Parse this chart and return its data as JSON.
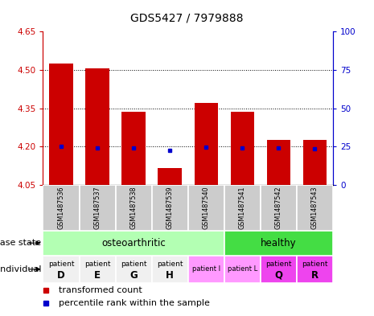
{
  "title": "GDS5427 / 7979888",
  "samples": [
    "GSM1487536",
    "GSM1487537",
    "GSM1487538",
    "GSM1487539",
    "GSM1487540",
    "GSM1487541",
    "GSM1487542",
    "GSM1487543"
  ],
  "bar_values": [
    4.525,
    4.505,
    4.335,
    4.115,
    4.37,
    4.335,
    4.225,
    4.225
  ],
  "percentile_values": [
    4.2,
    4.193,
    4.196,
    4.186,
    4.197,
    4.193,
    4.193,
    4.192
  ],
  "bar_bottom": 4.05,
  "ylim_left": [
    4.05,
    4.65
  ],
  "ylim_right": [
    0,
    100
  ],
  "yticks_left": [
    4.05,
    4.2,
    4.35,
    4.5,
    4.65
  ],
  "yticks_right": [
    0,
    25,
    50,
    75,
    100
  ],
  "bar_color": "#cc0000",
  "percentile_color": "#0000cc",
  "bar_width": 0.65,
  "sample_bg_color": "#cccccc",
  "left_axis_color": "#cc0000",
  "right_axis_color": "#0000cc",
  "disease_oa_color": "#b3ffb3",
  "disease_h_color": "#44dd44",
  "ind_colors_white": [
    "#f0f0f0",
    "#f0f0f0",
    "#f0f0f0",
    "#f0f0f0"
  ],
  "ind_colors_pink": [
    "#ff99ff",
    "#ff99ff"
  ],
  "ind_colors_magenta": [
    "#ee55ee",
    "#ee55ee"
  ]
}
